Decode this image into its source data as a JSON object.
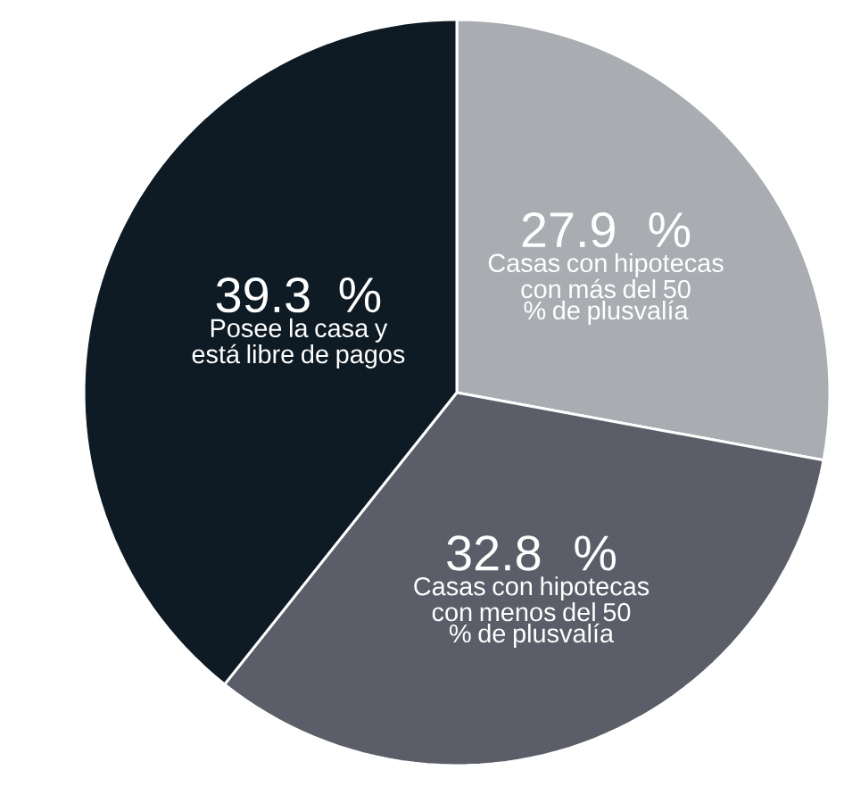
{
  "chart_data": {
    "type": "pie",
    "categories": [
      "Casas con hipotecas con más del 50 % de plusvalía",
      "Casas con hipotecas con menos del 50 % de plusvalía",
      "Posee la casa y está libre de pagos"
    ],
    "values": [
      27.9,
      32.8,
      39.3
    ],
    "value_labels": [
      "27.9 %",
      "32.8 %",
      "39.3 %"
    ],
    "colors": [
      "#a9acb1",
      "#5b5e69",
      "#0e1a24"
    ]
  }
}
